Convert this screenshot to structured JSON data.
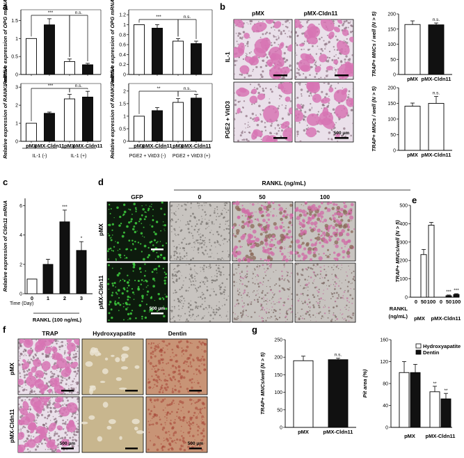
{
  "panel_labels": {
    "a": "a",
    "b": "b",
    "c": "c",
    "d": "d",
    "e": "e",
    "f": "f",
    "g": "g"
  },
  "colors": {
    "trap_stain_bg": "#eae0ea",
    "trap_cell": "#d774b4",
    "gfp_bg": "#0d1b0d",
    "gfp_cell": "#3ecd3e",
    "phase_bg": "#c8c4c0",
    "hydroxy_bg": "#c8b68e",
    "dentin_bg": "#c89476",
    "dentin_pit": "#a94a3a"
  },
  "panel_a": {
    "group_labels": {
      "il1_neg": "IL-1 (-)",
      "il1_pos": "IL-1 (+)",
      "pge_neg": "PGE2 + VitD3 (-)",
      "pge_pos": "PGE2 + VitD3 (+)"
    },
    "xtick_pmx": "pMX",
    "xtick_cldn11": "pMX-Cldn11"
  },
  "panel_b": {
    "col_pmx": "pMX",
    "col_cldn11": "pMX-Cldn11",
    "row_il1": "IL-1",
    "row_pge": "PGE2 + VitD3",
    "scalebar": "500 μm"
  },
  "panel_c": {
    "xlabel_time": "Time (Day)",
    "xlabel_rankl": "RANKL (100 ng/mL)"
  },
  "panel_d": {
    "header": "RANKL (ng/mL)",
    "col_gfp": "GFP",
    "col_0": "0",
    "col_50": "50",
    "col_100": "100",
    "row_pmx": "pMX",
    "row_cldn11": "pMX-Cldn11",
    "scalebar": "500 μm"
  },
  "panel_e": {
    "rankl_label": "RANKL",
    "units": "(ng/mL)",
    "group_pmx": "pMX",
    "group_cldn11": "pMX-Cldn11"
  },
  "panel_f": {
    "col_trap": "TRAP",
    "col_hydroxy": "Hydroxyapatite",
    "col_dentin": "Dentin",
    "row_pmx": "pMX",
    "row_cldn11": "pMX-Cldn11",
    "scalebar": "500 μm"
  },
  "chart_data": [
    {
      "id": "a1",
      "type": "bar",
      "ylabel": "Relative expression of OPG mRNA",
      "categories": [
        "pMX",
        "pMX-Cldn11",
        "pMX",
        "pMX-Cldn11"
      ],
      "groups": [
        "IL-1 (-)",
        "IL-1 (+)"
      ],
      "values": [
        1.0,
        1.38,
        0.36,
        0.27
      ],
      "errors": [
        0,
        0.17,
        0.07,
        0.04
      ],
      "ylim": [
        0,
        1.8
      ],
      "yticks": [
        0,
        0.5,
        1.0,
        1.5
      ],
      "fills": [
        "white",
        "black",
        "white",
        "black"
      ],
      "brackets": [
        {
          "from": 0,
          "to": 2,
          "label": "***"
        },
        {
          "from": 2,
          "to": 3,
          "label": "n.s."
        }
      ]
    },
    {
      "id": "a2",
      "type": "bar",
      "ylabel": "Relative expression of OPG mRNA",
      "categories": [
        "pMX",
        "pMX-Cldn11",
        "pMX",
        "pMX-Cldn11"
      ],
      "values": [
        1.0,
        0.93,
        0.67,
        0.62
      ],
      "errors": [
        0,
        0.07,
        0.05,
        0.05
      ],
      "ylim": [
        0,
        1.3
      ],
      "yticks": [
        0,
        0.2,
        0.4,
        0.6,
        0.8,
        1.0,
        1.2
      ],
      "fills": [
        "white",
        "black",
        "white",
        "black"
      ],
      "brackets": [
        {
          "from": 0,
          "to": 2,
          "label": "***"
        },
        {
          "from": 2,
          "to": 3,
          "label": "n.s."
        }
      ]
    },
    {
      "id": "a3",
      "type": "bar",
      "ylabel": "Relative expression of RANKL mRNA",
      "categories": [
        "pMX",
        "pMX-Cldn11",
        "pMX",
        "pMX-Cldn11"
      ],
      "values": [
        1.0,
        1.55,
        2.35,
        2.45
      ],
      "errors": [
        0,
        0.07,
        0.25,
        0.32
      ],
      "ylim": [
        0,
        3.2
      ],
      "yticks": [
        0,
        1,
        2,
        3
      ],
      "fills": [
        "white",
        "black",
        "white",
        "black"
      ],
      "brackets": [
        {
          "from": 0,
          "to": 2,
          "label": "***"
        },
        {
          "from": 2,
          "to": 3,
          "label": "n.s."
        }
      ]
    },
    {
      "id": "a4",
      "type": "bar",
      "ylabel": "Relative expression of RANKL mRNA",
      "categories": [
        "pMX",
        "pMX-Cldn11",
        "pMX",
        "pMX-Cldn11"
      ],
      "values": [
        1.0,
        1.22,
        1.55,
        1.72
      ],
      "errors": [
        0,
        0.12,
        0.15,
        0.15
      ],
      "ylim": [
        0,
        2.3
      ],
      "yticks": [
        0,
        0.5,
        1.0,
        1.5,
        2.0
      ],
      "fills": [
        "white",
        "black",
        "white",
        "black"
      ],
      "brackets": [
        {
          "from": 0,
          "to": 2,
          "label": "**"
        },
        {
          "from": 2,
          "to": 3,
          "label": "n.s."
        }
      ]
    },
    {
      "id": "b1",
      "type": "bar",
      "ylabel": "TRAP+ MNCs / well (N > 5)",
      "categories": [
        "pMX",
        "pMX-Cldn11"
      ],
      "values": [
        165,
        164
      ],
      "errors": [
        12,
        6
      ],
      "ylim": [
        0,
        200
      ],
      "yticks": [
        0,
        50,
        100,
        150,
        200
      ],
      "fills": [
        "white",
        "black"
      ],
      "annotations": [
        {
          "index": 1,
          "label": "n.s."
        }
      ]
    },
    {
      "id": "b2",
      "type": "bar",
      "ylabel": "TRAP+ MNCs / well (N > 5)",
      "categories": [
        "pMX",
        "pMX-Cldn11"
      ],
      "values": [
        141,
        150
      ],
      "errors": [
        10,
        22
      ],
      "ylim": [
        0,
        200
      ],
      "yticks": [
        0,
        50,
        100,
        150,
        200
      ],
      "fills": [
        "white",
        "white"
      ],
      "annotations": [
        {
          "index": 1,
          "label": "n.s."
        }
      ]
    },
    {
      "id": "c",
      "type": "bar",
      "ylabel": "Relative expression of Cldn11 mRNA",
      "categories": [
        "0",
        "1",
        "2",
        "3"
      ],
      "values": [
        1.0,
        2.0,
        4.9,
        2.95
      ],
      "errors": [
        0,
        0.35,
        0.8,
        0.6
      ],
      "ylim": [
        0,
        6.5
      ],
      "yticks": [
        0,
        2,
        4,
        6
      ],
      "fills": [
        "white",
        "black",
        "black",
        "black"
      ],
      "annotations": [
        {
          "index": 2,
          "label": "***"
        },
        {
          "index": 3,
          "label": "*"
        }
      ]
    },
    {
      "id": "e",
      "type": "bar",
      "ylabel": "TRAP+ MNCs/well (N > 5)",
      "categories": [
        "0",
        "50",
        "100",
        "0",
        "50",
        "100"
      ],
      "values": [
        0,
        232,
        392,
        0,
        8,
        15
      ],
      "errors": [
        0,
        28,
        15,
        0,
        4,
        4
      ],
      "ylim": [
        0,
        500
      ],
      "yticks": [
        0,
        100,
        200,
        300,
        400,
        500
      ],
      "fills": [
        "white",
        "white",
        "white",
        "black",
        "black",
        "black"
      ],
      "annotations": [
        {
          "index": 4,
          "label": "***"
        },
        {
          "index": 5,
          "label": "***"
        }
      ]
    },
    {
      "id": "g1",
      "type": "bar",
      "ylabel": "TRAP+ MNCs/well (N > 5)",
      "categories": [
        "pMX",
        "pMX-Cldn11"
      ],
      "values": [
        190,
        193
      ],
      "errors": [
        13,
        4
      ],
      "ylim": [
        0,
        250
      ],
      "yticks": [
        0,
        50,
        100,
        150,
        200,
        250
      ],
      "fills": [
        "white",
        "black"
      ],
      "annotations": [
        {
          "index": 1,
          "label": "n.s."
        }
      ]
    },
    {
      "id": "g2",
      "type": "bar",
      "ylabel": "Pit area (%)",
      "categories": [
        "pMX",
        "pMX-Cldn11"
      ],
      "series": [
        {
          "name": "Hydroxyapatite",
          "values": [
            100,
            65
          ],
          "errors": [
            20,
            10
          ],
          "fill": "white"
        },
        {
          "name": "Dentin",
          "values": [
            100,
            52
          ],
          "errors": [
            15,
            10
          ],
          "fill": "black"
        }
      ],
      "ylim": [
        0,
        160
      ],
      "yticks": [
        0,
        40,
        80,
        120,
        160
      ],
      "legend": "top-right",
      "annotations": [
        {
          "index": 1,
          "series": 0,
          "label": "**"
        },
        {
          "index": 1,
          "series": 1,
          "label": "**"
        }
      ]
    }
  ]
}
